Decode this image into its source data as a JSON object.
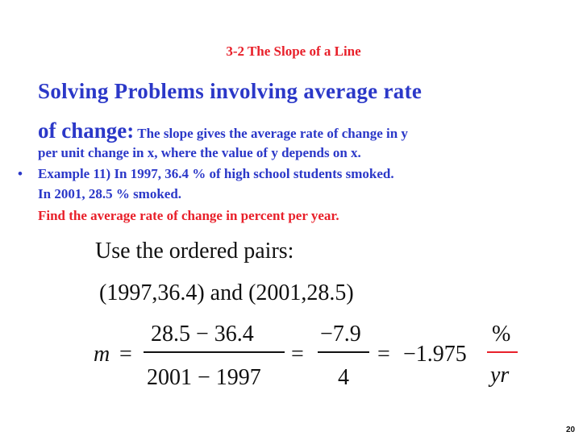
{
  "slide": {
    "title": "3-2 The Slope of a Line",
    "heading": "Solving Problems involving average rate",
    "line2_big": "of change:",
    "line2_small": "The slope gives the average rate of change in y",
    "line3": "per unit change in x, where the value of y depends on x.",
    "bullet_symbol": "•",
    "example_line1": "Example 11) In 1997, 36.4 % of high school students smoked.",
    "example_line2": "In 2001, 28.5 % smoked.",
    "example_line3": "Find the average rate of change in percent per year.",
    "use_text": "Use the ordered pairs:",
    "pairs_text": "(1997,36.4) and (2001,28.5)",
    "page_number": "20"
  },
  "equation": {
    "lhs": "m",
    "equals": "=",
    "frac1_num": "28.5 − 36.4",
    "frac1_den": "2001 − 1997",
    "frac2_num": "−7.9",
    "frac2_den": "4",
    "result": "−1.975",
    "unit_num": "%",
    "unit_den": "yr"
  },
  "colors": {
    "title": "#e8202a",
    "heading": "#2b38c8",
    "result": "#e8202a"
  }
}
